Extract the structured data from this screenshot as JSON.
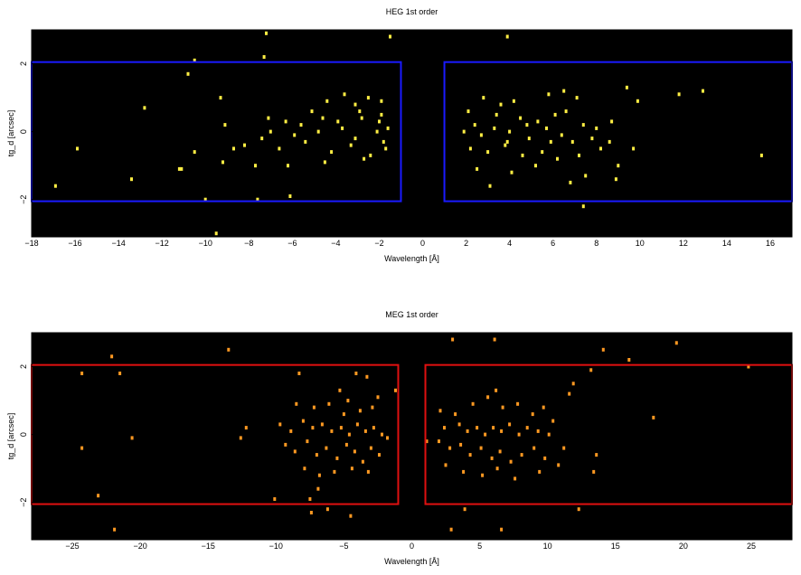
{
  "chart_data": [
    {
      "type": "scatter",
      "title": "HEG 1st order",
      "xlabel": "Wavelength [Å]",
      "ylabel": "tg_d [arcsec]",
      "xlim": [
        -18,
        17
      ],
      "ylim": [
        -3.1,
        3.0
      ],
      "xticks": [
        -18,
        -16,
        -14,
        -12,
        -10,
        -8,
        -6,
        -4,
        -2,
        0,
        2,
        4,
        6,
        8,
        10,
        12,
        14,
        16
      ],
      "yticks": [
        -2,
        0,
        2
      ],
      "background": "#000000",
      "point_color": "#ffee44",
      "box_color": "#1a1aff",
      "boxes": [
        {
          "x": [
            -18,
            -1
          ],
          "y": [
            -2.05,
            2.05
          ]
        },
        {
          "x": [
            1,
            17
          ],
          "y": [
            -2.05,
            2.05
          ]
        }
      ],
      "series": [
        {
          "points": [
            [
              -7.2,
              2.9
            ],
            [
              -7.3,
              2.2
            ],
            [
              -1.5,
              2.8
            ],
            [
              3.9,
              2.8
            ],
            [
              -10.8,
              1.7
            ],
            [
              -10.5,
              2.1
            ],
            [
              -9.3,
              1.0
            ],
            [
              -12.8,
              0.7
            ],
            [
              -15.9,
              -0.5
            ],
            [
              -16.9,
              -1.6
            ],
            [
              -13.4,
              -1.4
            ],
            [
              -11.1,
              -1.1
            ],
            [
              -10.0,
              -2.0
            ],
            [
              -7.6,
              -2.0
            ],
            [
              -9.5,
              -3.0
            ],
            [
              -6.1,
              -1.9
            ],
            [
              -3.6,
              1.1
            ],
            [
              -2.5,
              1.0
            ],
            [
              -3.1,
              0.8
            ],
            [
              -5.1,
              0.6
            ],
            [
              -7.1,
              0.4
            ],
            [
              -9.1,
              0.2
            ],
            [
              -10.5,
              -0.6
            ],
            [
              -11.2,
              -1.1
            ],
            [
              -4.4,
              0.9
            ],
            [
              -1.9,
              0.9
            ],
            [
              -2.8,
              0.4
            ],
            [
              -1.9,
              0.5
            ],
            [
              -6.3,
              0.3
            ],
            [
              -5.6,
              0.2
            ],
            [
              -4.8,
              0.0
            ],
            [
              -3.7,
              0.1
            ],
            [
              -2.1,
              0.0
            ],
            [
              -1.6,
              0.1
            ],
            [
              -8.2,
              -0.4
            ],
            [
              -7.4,
              -0.2
            ],
            [
              -6.6,
              -0.5
            ],
            [
              -5.4,
              -0.3
            ],
            [
              -4.2,
              -0.6
            ],
            [
              -3.3,
              -0.4
            ],
            [
              -2.4,
              -0.7
            ],
            [
              -1.7,
              -0.5
            ],
            [
              -9.2,
              -0.9
            ],
            [
              -7.7,
              -1.0
            ],
            [
              -6.2,
              -1.0
            ],
            [
              -4.5,
              -0.9
            ],
            [
              -2.7,
              -0.8
            ],
            [
              -3.9,
              0.3
            ],
            [
              -2.9,
              0.6
            ],
            [
              -2.0,
              0.3
            ],
            [
              -5.9,
              -0.1
            ],
            [
              -3.1,
              -0.2
            ],
            [
              -1.8,
              -0.3
            ],
            [
              -4.6,
              0.4
            ],
            [
              -8.7,
              -0.5
            ],
            [
              -7.0,
              0.0
            ],
            [
              2.8,
              1.0
            ],
            [
              4.2,
              0.9
            ],
            [
              5.8,
              1.1
            ],
            [
              6.5,
              1.2
            ],
            [
              7.1,
              1.0
            ],
            [
              2.1,
              0.6
            ],
            [
              3.4,
              0.5
            ],
            [
              4.5,
              0.4
            ],
            [
              5.3,
              0.3
            ],
            [
              6.1,
              0.5
            ],
            [
              7.4,
              0.2
            ],
            [
              8.0,
              0.1
            ],
            [
              1.9,
              0.0
            ],
            [
              2.7,
              -0.1
            ],
            [
              3.3,
              0.1
            ],
            [
              4.0,
              0.0
            ],
            [
              4.9,
              -0.2
            ],
            [
              5.7,
              0.1
            ],
            [
              6.4,
              -0.1
            ],
            [
              6.9,
              -0.3
            ],
            [
              7.8,
              -0.2
            ],
            [
              8.6,
              -0.3
            ],
            [
              2.2,
              -0.5
            ],
            [
              3.0,
              -0.6
            ],
            [
              3.8,
              -0.4
            ],
            [
              4.6,
              -0.7
            ],
            [
              5.5,
              -0.6
            ],
            [
              6.2,
              -0.8
            ],
            [
              7.2,
              -0.7
            ],
            [
              2.5,
              -1.1
            ],
            [
              3.1,
              -1.6
            ],
            [
              4.1,
              -1.2
            ],
            [
              5.2,
              -1.0
            ],
            [
              6.8,
              -1.5
            ],
            [
              7.5,
              -1.3
            ],
            [
              8.9,
              -1.4
            ],
            [
              7.4,
              -2.2
            ],
            [
              9.0,
              -1.0
            ],
            [
              9.7,
              -0.5
            ],
            [
              9.9,
              0.9
            ],
            [
              9.4,
              1.3
            ],
            [
              11.8,
              1.1
            ],
            [
              12.9,
              1.2
            ],
            [
              15.6,
              -0.7
            ],
            [
              8.7,
              0.3
            ],
            [
              3.6,
              0.8
            ],
            [
              4.8,
              0.2
            ],
            [
              5.9,
              -0.3
            ],
            [
              2.4,
              0.2
            ],
            [
              3.9,
              -0.3
            ],
            [
              6.6,
              0.6
            ],
            [
              8.2,
              -0.5
            ]
          ]
        }
      ]
    },
    {
      "type": "scatter",
      "title": "MEG 1st order",
      "xlabel": "Wavelength [Å]",
      "ylabel": "tg_d [arcsec]",
      "xlim": [
        -28,
        28
      ],
      "ylim": [
        -3.1,
        3.0
      ],
      "xticks": [
        -25,
        -20,
        -15,
        -10,
        -5,
        0,
        5,
        10,
        15,
        20,
        25
      ],
      "yticks": [
        -2,
        0,
        2
      ],
      "background": "#000000",
      "point_color": "#ff9922",
      "box_color": "#e01010",
      "boxes": [
        {
          "x": [
            -28,
            -1
          ],
          "y": [
            -2.05,
            2.05
          ]
        },
        {
          "x": [
            1,
            28
          ],
          "y": [
            -2.05,
            2.05
          ]
        }
      ],
      "series": [
        {
          "points": [
            [
              3.0,
              2.8
            ],
            [
              6.1,
              2.8
            ],
            [
              14.1,
              2.5
            ],
            [
              19.5,
              2.7
            ],
            [
              16.0,
              2.2
            ],
            [
              -22.1,
              2.3
            ],
            [
              -21.5,
              1.8
            ],
            [
              -13.5,
              2.5
            ],
            [
              -8.3,
              1.8
            ],
            [
              -4.1,
              1.8
            ],
            [
              -3.3,
              1.7
            ],
            [
              -1.2,
              1.3
            ],
            [
              -24.3,
              1.8
            ],
            [
              -24.3,
              -0.4
            ],
            [
              -20.6,
              -0.1
            ],
            [
              -21.9,
              -2.8
            ],
            [
              -23.1,
              -1.8
            ],
            [
              -10.1,
              -1.9
            ],
            [
              -7.5,
              -1.9
            ],
            [
              -7.4,
              -2.3
            ],
            [
              -6.2,
              -2.2
            ],
            [
              -4.5,
              -2.4
            ],
            [
              -12.6,
              -0.1
            ],
            [
              -12.2,
              0.2
            ],
            [
              3.9,
              -2.2
            ],
            [
              2.9,
              -2.8
            ],
            [
              6.6,
              -2.8
            ],
            [
              12.3,
              -2.2
            ],
            [
              13.6,
              -0.6
            ],
            [
              13.4,
              -1.1
            ],
            [
              11.6,
              1.2
            ],
            [
              11.9,
              1.5
            ],
            [
              13.2,
              1.9
            ],
            [
              17.8,
              0.5
            ],
            [
              24.8,
              2.0
            ],
            [
              1.1,
              -0.2
            ],
            [
              -8.5,
              0.9
            ],
            [
              -7.2,
              0.8
            ],
            [
              -6.1,
              0.9
            ],
            [
              -5.0,
              0.6
            ],
            [
              -3.8,
              0.7
            ],
            [
              -2.9,
              0.8
            ],
            [
              -9.7,
              0.3
            ],
            [
              -8.9,
              0.1
            ],
            [
              -8.0,
              0.4
            ],
            [
              -7.3,
              0.2
            ],
            [
              -6.6,
              0.3
            ],
            [
              -5.9,
              0.1
            ],
            [
              -5.2,
              0.2
            ],
            [
              -4.6,
              0.0
            ],
            [
              -4.0,
              0.3
            ],
            [
              -3.4,
              0.1
            ],
            [
              -2.8,
              0.2
            ],
            [
              -2.2,
              0.0
            ],
            [
              -1.8,
              -0.1
            ],
            [
              -9.3,
              -0.3
            ],
            [
              -8.6,
              -0.5
            ],
            [
              -7.7,
              -0.2
            ],
            [
              -7.0,
              -0.6
            ],
            [
              -6.3,
              -0.4
            ],
            [
              -5.5,
              -0.7
            ],
            [
              -4.8,
              -0.3
            ],
            [
              -4.2,
              -0.5
            ],
            [
              -3.6,
              -0.8
            ],
            [
              -3.0,
              -0.4
            ],
            [
              -2.4,
              -0.6
            ],
            [
              -7.9,
              -1.0
            ],
            [
              -6.8,
              -1.2
            ],
            [
              -5.7,
              -1.1
            ],
            [
              -4.4,
              -1.0
            ],
            [
              -3.2,
              -1.1
            ],
            [
              -6.9,
              -1.6
            ],
            [
              -5.3,
              1.3
            ],
            [
              -4.7,
              1.0
            ],
            [
              -2.5,
              1.1
            ],
            [
              2.1,
              0.7
            ],
            [
              3.2,
              0.6
            ],
            [
              4.5,
              0.9
            ],
            [
              5.6,
              1.1
            ],
            [
              6.7,
              0.8
            ],
            [
              7.8,
              0.9
            ],
            [
              8.9,
              0.6
            ],
            [
              2.4,
              0.2
            ],
            [
              3.5,
              0.3
            ],
            [
              4.1,
              0.1
            ],
            [
              4.8,
              0.2
            ],
            [
              5.4,
              0.0
            ],
            [
              6.0,
              0.2
            ],
            [
              6.6,
              0.1
            ],
            [
              7.2,
              0.3
            ],
            [
              7.9,
              0.0
            ],
            [
              8.5,
              0.2
            ],
            [
              9.3,
              0.1
            ],
            [
              10.1,
              0.0
            ],
            [
              2.0,
              -0.2
            ],
            [
              2.8,
              -0.4
            ],
            [
              3.6,
              -0.3
            ],
            [
              4.3,
              -0.6
            ],
            [
              5.1,
              -0.4
            ],
            [
              5.9,
              -0.7
            ],
            [
              6.5,
              -0.5
            ],
            [
              7.3,
              -0.8
            ],
            [
              8.1,
              -0.6
            ],
            [
              9.0,
              -0.4
            ],
            [
              9.8,
              -0.7
            ],
            [
              11.2,
              -0.4
            ],
            [
              2.5,
              -0.9
            ],
            [
              3.8,
              -1.1
            ],
            [
              5.2,
              -1.2
            ],
            [
              6.3,
              -1.0
            ],
            [
              7.6,
              -1.3
            ],
            [
              9.4,
              -1.1
            ],
            [
              10.8,
              -0.9
            ],
            [
              6.2,
              1.3
            ],
            [
              9.7,
              0.8
            ],
            [
              10.4,
              0.4
            ]
          ]
        }
      ]
    }
  ]
}
